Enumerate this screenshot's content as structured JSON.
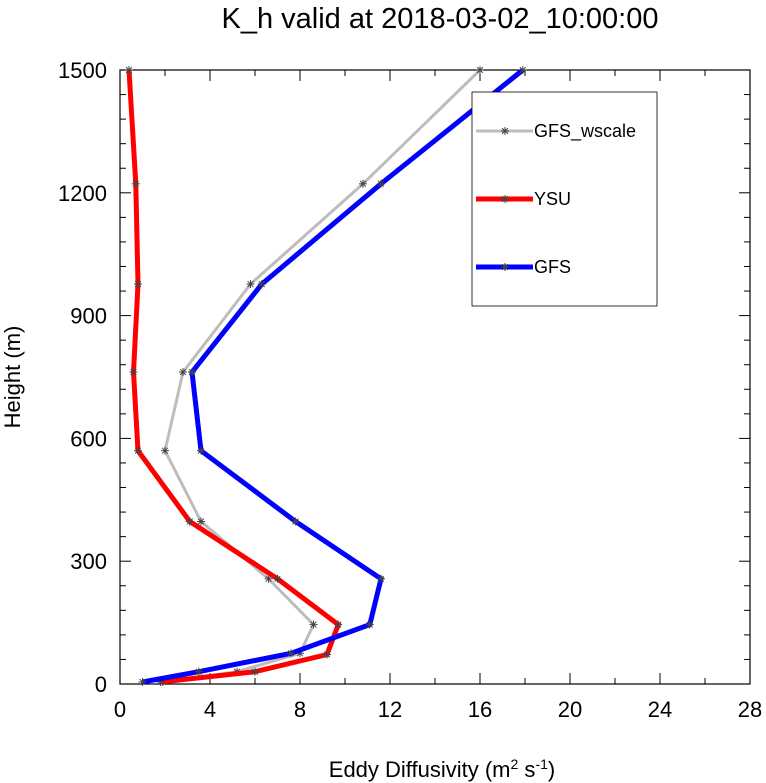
{
  "chart_data": {
    "type": "line",
    "title": "K_h valid at 2018-03-02_10:00:00",
    "xlabel": "Eddy Diffusivity (m² s⁻¹)",
    "xlabel_parts": {
      "base": "Eddy Diffusivity (m",
      "sup1": "2",
      "mid": " s",
      "sup2": "-1",
      "end": ")"
    },
    "ylabel": "Height (m)",
    "xlim": [
      0,
      28
    ],
    "ylim": [
      0,
      1500
    ],
    "xticks": [
      0,
      4,
      8,
      12,
      16,
      20,
      24,
      28
    ],
    "yticks": [
      0,
      300,
      600,
      900,
      1200,
      1500
    ],
    "grid": false,
    "legend_position": "upper-right",
    "series": [
      {
        "name": "GFS_wscale",
        "color": "#bdbdbd",
        "points": [
          [
            1.9,
            5
          ],
          [
            5.2,
            30
          ],
          [
            8.0,
            75
          ],
          [
            8.6,
            145
          ],
          [
            6.6,
            257
          ],
          [
            3.6,
            397
          ],
          [
            2.0,
            570
          ],
          [
            2.8,
            762
          ],
          [
            5.8,
            977
          ],
          [
            10.8,
            1222
          ],
          [
            16.0,
            1500
          ]
        ]
      },
      {
        "name": "YSU",
        "color": "#ff0000",
        "points": [
          [
            1.8,
            5
          ],
          [
            6.0,
            30
          ],
          [
            9.2,
            72
          ],
          [
            9.7,
            145
          ],
          [
            7.0,
            257
          ],
          [
            3.1,
            397
          ],
          [
            0.8,
            570
          ],
          [
            0.6,
            762
          ],
          [
            0.8,
            977
          ],
          [
            0.7,
            1222
          ],
          [
            0.4,
            1500
          ]
        ]
      },
      {
        "name": "GFS",
        "color": "#0000ff",
        "points": [
          [
            1.0,
            5
          ],
          [
            3.5,
            30
          ],
          [
            7.6,
            75
          ],
          [
            11.1,
            145
          ],
          [
            11.6,
            257
          ],
          [
            7.8,
            397
          ],
          [
            3.6,
            570
          ],
          [
            3.2,
            762
          ],
          [
            6.3,
            977
          ],
          [
            11.6,
            1222
          ],
          [
            17.9,
            1500
          ]
        ]
      }
    ]
  }
}
